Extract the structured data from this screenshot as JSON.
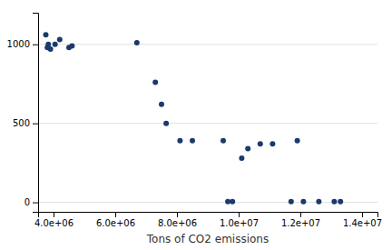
{
  "chart_data": {
    "type": "scatter",
    "x": [
      3750000,
      3800000,
      3830000,
      3900000,
      4050000,
      4200000,
      4500000,
      4600000,
      6700000,
      7300000,
      7500000,
      7650000,
      8100000,
      8500000,
      9500000,
      9650000,
      9800000,
      10100000,
      10300000,
      10700000,
      11100000,
      11700000,
      11900000,
      12100000,
      12600000,
      13100000,
      13300000
    ],
    "values": [
      1060,
      980,
      1000,
      970,
      1000,
      1030,
      980,
      990,
      1010,
      760,
      620,
      500,
      390,
      390,
      390,
      5,
      5,
      280,
      340,
      370,
      370,
      5,
      390,
      5,
      5,
      5,
      5
    ],
    "xlabel": "Tons of CO2 emissions",
    "xlim": [
      3500000,
      14500000
    ],
    "ylim": [
      -60,
      1200
    ],
    "xticks": [
      {
        "value": 4000000,
        "label": "4.0e+06"
      },
      {
        "value": 6000000,
        "label": "6.0e+06"
      },
      {
        "value": 8000000,
        "label": "8.0e+06"
      },
      {
        "value": 10000000,
        "label": "1.0e+07"
      },
      {
        "value": 12000000,
        "label": "1.2e+07"
      },
      {
        "value": 14000000,
        "label": "1.4e+07"
      }
    ],
    "yticks": [
      0,
      500,
      1000
    ],
    "color": "#1b3a6b",
    "grid": true
  }
}
